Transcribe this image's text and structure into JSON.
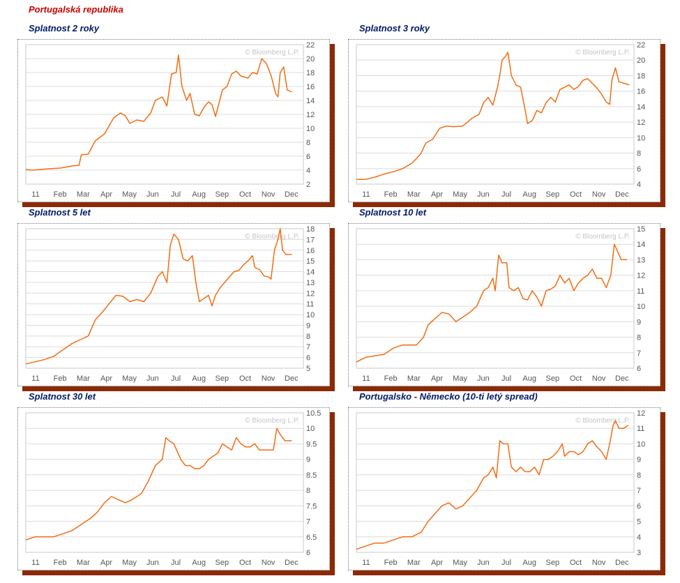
{
  "page": {
    "title": "Portugalská republika"
  },
  "colors": {
    "line": "#f26c11",
    "shadow": "#8b2a07",
    "title": "#001a66",
    "main_title": "#cc0000"
  },
  "credit": "© Bloomberg L.P.",
  "months": [
    "11",
    "Feb",
    "Mar",
    "Apr",
    "May",
    "Jun",
    "Jul",
    "Aug",
    "Sep",
    "Oct",
    "Nov",
    "Dec"
  ],
  "chart_data": [
    {
      "id": "p1",
      "type": "line",
      "title": "Splatnost 2 roky",
      "ylim": [
        2,
        22
      ],
      "yticks": [
        2,
        4,
        6,
        8,
        10,
        12,
        14,
        16,
        18,
        20,
        22
      ],
      "points": [
        [
          0,
          4.1
        ],
        [
          0.3,
          4.0
        ],
        [
          0.6,
          4.1
        ],
        [
          1.0,
          4.2
        ],
        [
          1.5,
          4.3
        ],
        [
          2.0,
          4.6
        ],
        [
          2.3,
          4.7
        ],
        [
          2.4,
          6.2
        ],
        [
          2.7,
          6.3
        ],
        [
          3.0,
          8.2
        ],
        [
          3.4,
          9.2
        ],
        [
          3.8,
          11.5
        ],
        [
          4.1,
          12.2
        ],
        [
          4.3,
          11.8
        ],
        [
          4.5,
          10.7
        ],
        [
          4.8,
          11.2
        ],
        [
          5.1,
          11.0
        ],
        [
          5.4,
          12.2
        ],
        [
          5.6,
          14.0
        ],
        [
          5.9,
          14.5
        ],
        [
          6.1,
          13.2
        ],
        [
          6.3,
          17.8
        ],
        [
          6.5,
          18.0
        ],
        [
          6.6,
          20.5
        ],
        [
          6.75,
          16.0
        ],
        [
          6.95,
          14.0
        ],
        [
          7.1,
          15.0
        ],
        [
          7.3,
          12.0
        ],
        [
          7.5,
          11.8
        ],
        [
          7.7,
          13.0
        ],
        [
          7.9,
          13.8
        ],
        [
          8.05,
          13.4
        ],
        [
          8.2,
          11.7
        ],
        [
          8.5,
          15.5
        ],
        [
          8.7,
          16.0
        ],
        [
          8.9,
          17.8
        ],
        [
          9.1,
          18.2
        ],
        [
          9.3,
          17.5
        ],
        [
          9.6,
          17.2
        ],
        [
          9.8,
          18.0
        ],
        [
          10.0,
          17.8
        ],
        [
          10.2,
          20.0
        ],
        [
          10.4,
          19.3
        ],
        [
          10.6,
          17.6
        ],
        [
          10.8,
          15.0
        ],
        [
          10.9,
          14.5
        ],
        [
          11.0,
          18.0
        ],
        [
          11.15,
          18.8
        ],
        [
          11.3,
          15.5
        ],
        [
          11.5,
          15.2
        ]
      ]
    },
    {
      "id": "p2",
      "type": "line",
      "title": "Splatnost 3 roky",
      "ylim": [
        4,
        22
      ],
      "yticks": [
        4,
        6,
        8,
        10,
        12,
        14,
        16,
        18,
        20,
        22
      ],
      "points": [
        [
          0,
          4.6
        ],
        [
          0.4,
          4.6
        ],
        [
          0.8,
          4.9
        ],
        [
          1.2,
          5.3
        ],
        [
          1.6,
          5.6
        ],
        [
          2.0,
          6.0
        ],
        [
          2.4,
          6.7
        ],
        [
          2.6,
          7.3
        ],
        [
          2.8,
          8.0
        ],
        [
          3.0,
          9.3
        ],
        [
          3.3,
          9.8
        ],
        [
          3.6,
          11.2
        ],
        [
          3.9,
          11.5
        ],
        [
          4.2,
          11.4
        ],
        [
          4.6,
          11.5
        ],
        [
          5.0,
          12.5
        ],
        [
          5.3,
          13.0
        ],
        [
          5.5,
          14.5
        ],
        [
          5.7,
          15.2
        ],
        [
          5.9,
          14.2
        ],
        [
          6.1,
          16.5
        ],
        [
          6.2,
          18.0
        ],
        [
          6.3,
          20.0
        ],
        [
          6.45,
          20.5
        ],
        [
          6.55,
          21.0
        ],
        [
          6.7,
          18.0
        ],
        [
          6.9,
          16.8
        ],
        [
          7.1,
          16.5
        ],
        [
          7.3,
          13.5
        ],
        [
          7.4,
          11.8
        ],
        [
          7.6,
          12.2
        ],
        [
          7.8,
          13.5
        ],
        [
          8.0,
          13.2
        ],
        [
          8.2,
          14.5
        ],
        [
          8.4,
          15.2
        ],
        [
          8.6,
          14.6
        ],
        [
          8.8,
          16.2
        ],
        [
          9.0,
          16.5
        ],
        [
          9.2,
          16.8
        ],
        [
          9.4,
          16.2
        ],
        [
          9.6,
          16.6
        ],
        [
          9.8,
          17.4
        ],
        [
          10.0,
          17.6
        ],
        [
          10.2,
          17.0
        ],
        [
          10.4,
          16.4
        ],
        [
          10.6,
          15.6
        ],
        [
          10.8,
          14.6
        ],
        [
          10.95,
          14.3
        ],
        [
          11.05,
          17.5
        ],
        [
          11.2,
          19.0
        ],
        [
          11.35,
          17.2
        ],
        [
          11.6,
          17.0
        ],
        [
          11.8,
          16.8
        ]
      ]
    },
    {
      "id": "p3",
      "type": "line",
      "title": "Splatnost 5 let",
      "ylim": [
        5,
        18
      ],
      "yticks": [
        5,
        6,
        7,
        8,
        9,
        10,
        11,
        12,
        13,
        14,
        15,
        16,
        17,
        18
      ],
      "points": [
        [
          0,
          5.4
        ],
        [
          0.4,
          5.6
        ],
        [
          0.8,
          5.8
        ],
        [
          1.2,
          6.1
        ],
        [
          1.6,
          6.7
        ],
        [
          2.0,
          7.3
        ],
        [
          2.4,
          7.7
        ],
        [
          2.7,
          8.0
        ],
        [
          3.0,
          9.5
        ],
        [
          3.3,
          10.2
        ],
        [
          3.6,
          11.0
        ],
        [
          3.9,
          11.8
        ],
        [
          4.2,
          11.7
        ],
        [
          4.5,
          11.2
        ],
        [
          4.8,
          11.4
        ],
        [
          5.1,
          11.2
        ],
        [
          5.4,
          12.0
        ],
        [
          5.7,
          13.5
        ],
        [
          5.9,
          14.0
        ],
        [
          6.1,
          13.0
        ],
        [
          6.25,
          16.5
        ],
        [
          6.4,
          17.5
        ],
        [
          6.6,
          17.0
        ],
        [
          6.8,
          15.2
        ],
        [
          7.0,
          15.0
        ],
        [
          7.2,
          15.5
        ],
        [
          7.35,
          13.0
        ],
        [
          7.5,
          11.2
        ],
        [
          7.7,
          11.5
        ],
        [
          7.9,
          11.8
        ],
        [
          8.05,
          10.8
        ],
        [
          8.2,
          11.8
        ],
        [
          8.4,
          12.5
        ],
        [
          8.6,
          13.0
        ],
        [
          8.8,
          13.5
        ],
        [
          9.0,
          14.0
        ],
        [
          9.2,
          14.1
        ],
        [
          9.4,
          14.6
        ],
        [
          9.6,
          15.0
        ],
        [
          9.8,
          15.5
        ],
        [
          9.9,
          14.4
        ],
        [
          10.1,
          14.2
        ],
        [
          10.3,
          13.6
        ],
        [
          10.5,
          13.5
        ],
        [
          10.6,
          13.3
        ],
        [
          10.75,
          16.0
        ],
        [
          10.9,
          17.0
        ],
        [
          11.0,
          18.0
        ],
        [
          11.1,
          16.0
        ],
        [
          11.25,
          15.6
        ],
        [
          11.5,
          15.6
        ]
      ]
    },
    {
      "id": "p4",
      "type": "line",
      "title": "Splatnost 10 let",
      "ylim": [
        6,
        15
      ],
      "yticks": [
        6,
        7,
        8,
        9,
        10,
        11,
        12,
        13,
        14,
        15
      ],
      "points": [
        [
          0,
          6.4
        ],
        [
          0.4,
          6.7
        ],
        [
          0.8,
          6.8
        ],
        [
          1.2,
          6.9
        ],
        [
          1.6,
          7.3
        ],
        [
          2.0,
          7.5
        ],
        [
          2.3,
          7.5
        ],
        [
          2.6,
          7.5
        ],
        [
          2.9,
          8.0
        ],
        [
          3.1,
          8.8
        ],
        [
          3.4,
          9.2
        ],
        [
          3.7,
          9.6
        ],
        [
          4.0,
          9.5
        ],
        [
          4.3,
          9.0
        ],
        [
          4.6,
          9.3
        ],
        [
          4.9,
          9.6
        ],
        [
          5.2,
          10.0
        ],
        [
          5.5,
          11.0
        ],
        [
          5.7,
          11.2
        ],
        [
          5.9,
          11.8
        ],
        [
          6.0,
          11.0
        ],
        [
          6.15,
          13.3
        ],
        [
          6.3,
          12.8
        ],
        [
          6.5,
          12.8
        ],
        [
          6.6,
          11.2
        ],
        [
          6.8,
          11.0
        ],
        [
          7.0,
          11.2
        ],
        [
          7.2,
          10.5
        ],
        [
          7.4,
          10.4
        ],
        [
          7.6,
          11.0
        ],
        [
          7.8,
          10.6
        ],
        [
          8.0,
          10.0
        ],
        [
          8.2,
          11.0
        ],
        [
          8.4,
          11.1
        ],
        [
          8.6,
          11.3
        ],
        [
          8.8,
          12.0
        ],
        [
          9.0,
          11.5
        ],
        [
          9.2,
          11.8
        ],
        [
          9.4,
          11.0
        ],
        [
          9.6,
          11.5
        ],
        [
          9.8,
          11.8
        ],
        [
          10.0,
          12.0
        ],
        [
          10.2,
          12.4
        ],
        [
          10.4,
          11.8
        ],
        [
          10.6,
          11.8
        ],
        [
          10.8,
          11.2
        ],
        [
          11.0,
          12.0
        ],
        [
          11.15,
          14.0
        ],
        [
          11.3,
          13.5
        ],
        [
          11.45,
          13.0
        ],
        [
          11.7,
          13.0
        ]
      ]
    },
    {
      "id": "p5",
      "type": "line",
      "title": "Splatnost 30 let",
      "ylim": [
        6,
        10.5
      ],
      "yticks": [
        6,
        6.5,
        7,
        7.5,
        8,
        8.5,
        9,
        9.5,
        10,
        10.5
      ],
      "points": [
        [
          0,
          6.4
        ],
        [
          0.4,
          6.5
        ],
        [
          0.8,
          6.5
        ],
        [
          1.2,
          6.5
        ],
        [
          1.6,
          6.6
        ],
        [
          2.0,
          6.7
        ],
        [
          2.4,
          6.9
        ],
        [
          2.8,
          7.1
        ],
        [
          3.1,
          7.3
        ],
        [
          3.4,
          7.6
        ],
        [
          3.7,
          7.8
        ],
        [
          4.0,
          7.7
        ],
        [
          4.3,
          7.6
        ],
        [
          4.6,
          7.7
        ],
        [
          5.0,
          7.9
        ],
        [
          5.3,
          8.3
        ],
        [
          5.6,
          8.8
        ],
        [
          5.9,
          9.0
        ],
        [
          6.05,
          9.7
        ],
        [
          6.2,
          9.6
        ],
        [
          6.4,
          9.5
        ],
        [
          6.7,
          9.0
        ],
        [
          6.9,
          8.8
        ],
        [
          7.1,
          8.8
        ],
        [
          7.3,
          8.7
        ],
        [
          7.5,
          8.7
        ],
        [
          7.7,
          8.8
        ],
        [
          7.9,
          9.0
        ],
        [
          8.1,
          9.1
        ],
        [
          8.3,
          9.2
        ],
        [
          8.5,
          9.5
        ],
        [
          8.7,
          9.4
        ],
        [
          8.9,
          9.3
        ],
        [
          9.1,
          9.7
        ],
        [
          9.3,
          9.5
        ],
        [
          9.5,
          9.4
        ],
        [
          9.7,
          9.4
        ],
        [
          9.9,
          9.5
        ],
        [
          10.1,
          9.3
        ],
        [
          10.3,
          9.3
        ],
        [
          10.5,
          9.3
        ],
        [
          10.7,
          9.3
        ],
        [
          10.85,
          10.0
        ],
        [
          11.0,
          9.8
        ],
        [
          11.2,
          9.6
        ],
        [
          11.5,
          9.6
        ]
      ]
    },
    {
      "id": "p6",
      "type": "line",
      "title": "Portugalsko - Německo (10-ti letý spread)",
      "ylim": [
        3,
        12
      ],
      "yticks": [
        3,
        4,
        5,
        6,
        7,
        8,
        9,
        10,
        11,
        12
      ],
      "points": [
        [
          0,
          3.2
        ],
        [
          0.4,
          3.4
        ],
        [
          0.8,
          3.6
        ],
        [
          1.2,
          3.6
        ],
        [
          1.6,
          3.8
        ],
        [
          2.0,
          4.0
        ],
        [
          2.4,
          4.0
        ],
        [
          2.8,
          4.3
        ],
        [
          3.1,
          5.0
        ],
        [
          3.4,
          5.5
        ],
        [
          3.7,
          6.0
        ],
        [
          4.0,
          6.2
        ],
        [
          4.3,
          5.8
        ],
        [
          4.6,
          6.0
        ],
        [
          4.9,
          6.5
        ],
        [
          5.2,
          7.0
        ],
        [
          5.5,
          7.8
        ],
        [
          5.7,
          8.0
        ],
        [
          5.9,
          8.5
        ],
        [
          6.05,
          7.8
        ],
        [
          6.2,
          10.2
        ],
        [
          6.35,
          10.0
        ],
        [
          6.55,
          10.0
        ],
        [
          6.7,
          8.5
        ],
        [
          6.9,
          8.2
        ],
        [
          7.1,
          8.5
        ],
        [
          7.3,
          8.2
        ],
        [
          7.5,
          8.2
        ],
        [
          7.7,
          8.5
        ],
        [
          7.9,
          8.0
        ],
        [
          8.1,
          9.0
        ],
        [
          8.3,
          9.0
        ],
        [
          8.5,
          9.2
        ],
        [
          8.7,
          9.5
        ],
        [
          8.9,
          10.0
        ],
        [
          9.0,
          9.2
        ],
        [
          9.2,
          9.5
        ],
        [
          9.4,
          9.5
        ],
        [
          9.6,
          9.3
        ],
        [
          9.8,
          9.5
        ],
        [
          10.0,
          10.0
        ],
        [
          10.2,
          10.2
        ],
        [
          10.4,
          9.8
        ],
        [
          10.6,
          9.5
        ],
        [
          10.8,
          9.0
        ],
        [
          10.95,
          10.0
        ],
        [
          11.1,
          11.2
        ],
        [
          11.2,
          11.5
        ],
        [
          11.35,
          11.0
        ],
        [
          11.55,
          11.0
        ],
        [
          11.75,
          11.2
        ]
      ]
    }
  ]
}
